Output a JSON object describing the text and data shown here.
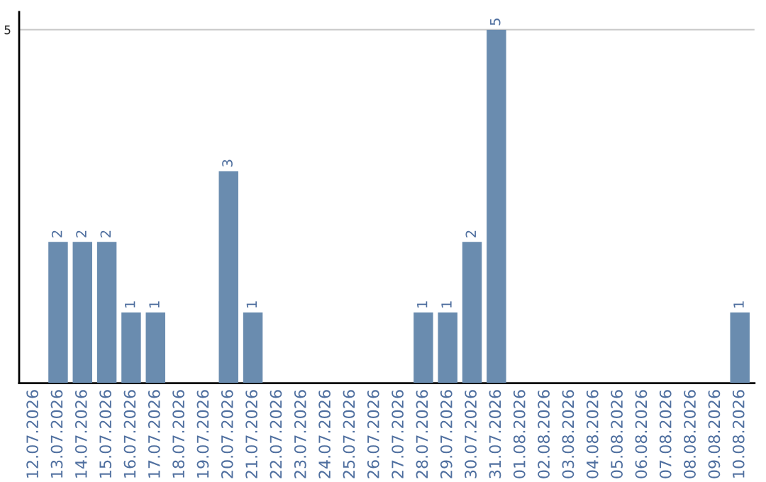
{
  "chart_data": {
    "type": "bar",
    "categories": [
      "12.07.2026",
      "13.07.2026",
      "14.07.2026",
      "15.07.2026",
      "16.07.2026",
      "17.07.2026",
      "18.07.2026",
      "19.07.2026",
      "20.07.2026",
      "21.07.2026",
      "22.07.2026",
      "23.07.2026",
      "24.07.2026",
      "25.07.2026",
      "26.07.2026",
      "27.07.2026",
      "28.07.2026",
      "29.07.2026",
      "30.07.2026",
      "31.07.2026",
      "01.08.2026",
      "02.08.2026",
      "03.08.2026",
      "04.08.2026",
      "05.08.2026",
      "06.08.2026",
      "07.08.2026",
      "08.08.2026",
      "09.08.2026",
      "10.08.2026"
    ],
    "values": [
      0,
      2,
      2,
      2,
      1,
      1,
      0,
      0,
      3,
      1,
      0,
      0,
      0,
      0,
      0,
      0,
      1,
      1,
      2,
      5,
      0,
      0,
      0,
      0,
      0,
      0,
      0,
      0,
      0,
      1
    ],
    "value_labels": [
      null,
      "2",
      "2",
      "2",
      "1",
      "1",
      null,
      null,
      "3",
      "1",
      null,
      null,
      null,
      null,
      null,
      null,
      "1",
      "1",
      "2",
      "5",
      null,
      null,
      null,
      null,
      null,
      null,
      null,
      null,
      null,
      "1"
    ],
    "color": "#6a8caf",
    "ylim": [
      0,
      5.25
    ],
    "yticks": [
      5
    ],
    "grid": "y"
  }
}
